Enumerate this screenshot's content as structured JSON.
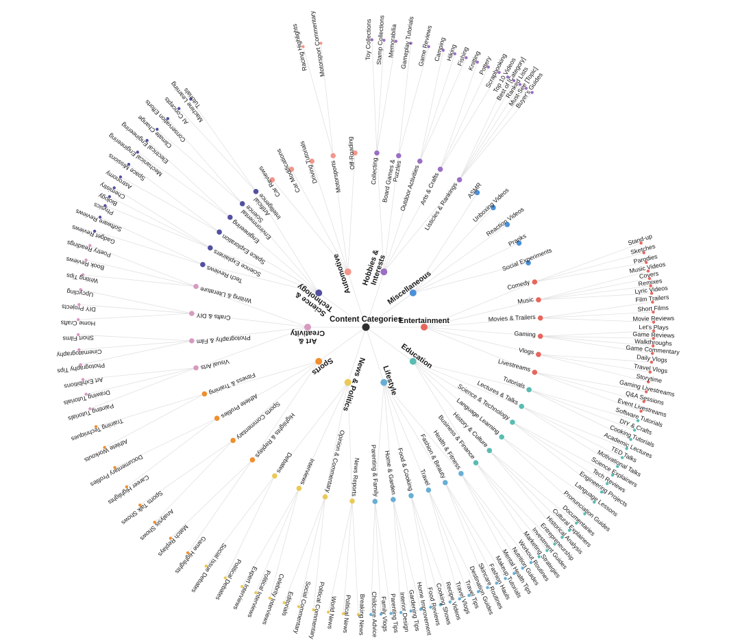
{
  "title": "Content Categories",
  "colors": {
    "root": "#2e2e2e",
    "link": "#e1e1e1",
    "text": "#151515"
  },
  "tree": {
    "label": "Content Categories",
    "children": [
      {
        "label": "Entertainment",
        "color": "#e8655c",
        "children": [
          {
            "label": "Comedy",
            "children": [
              {
                "label": "Stand-up"
              },
              {
                "label": "Sketches"
              },
              {
                "label": "Parodies"
              }
            ]
          },
          {
            "label": "Music",
            "children": [
              {
                "label": "Music Videos"
              },
              {
                "label": "Covers"
              },
              {
                "label": "Remixes"
              },
              {
                "label": "Lyric Videos"
              }
            ]
          },
          {
            "label": "Movies & Trailers",
            "children": [
              {
                "label": "Film Trailers"
              },
              {
                "label": "Short Films"
              },
              {
                "label": "Movie Reviews"
              }
            ]
          },
          {
            "label": "Gaming",
            "children": [
              {
                "label": "Let's Plays"
              },
              {
                "label": "Game Reviews"
              },
              {
                "label": "Walkthroughs"
              },
              {
                "label": "Game Commentary"
              }
            ]
          },
          {
            "label": "Vlogs",
            "children": [
              {
                "label": "Daily Vlogs"
              },
              {
                "label": "Travel Vlogs"
              },
              {
                "label": "Storytime"
              }
            ]
          },
          {
            "label": "Livestreams",
            "children": [
              {
                "label": "Gaming Livestreams"
              },
              {
                "label": "Q&A Sessions"
              },
              {
                "label": "Event Livestreams"
              }
            ]
          }
        ]
      },
      {
        "label": "Education",
        "color": "#59bcb3",
        "children": [
          {
            "label": "Tutorials",
            "children": [
              {
                "label": "Software Tutorials"
              },
              {
                "label": "DIY & Crafts"
              },
              {
                "label": "Cooking Tutorials"
              }
            ]
          },
          {
            "label": "Lectures & Talks",
            "children": [
              {
                "label": "Academic Lectures"
              },
              {
                "label": "TED Talks"
              },
              {
                "label": "Motivational Talks"
              }
            ]
          },
          {
            "label": "Science & Technology",
            "children": [
              {
                "label": "Science Explainers"
              },
              {
                "label": "Tech Reviews"
              },
              {
                "label": "Engineering Projects"
              }
            ]
          },
          {
            "label": "Language Learning",
            "children": [
              {
                "label": "Language Lessons"
              },
              {
                "label": "Pronunciation Guides"
              }
            ]
          },
          {
            "label": "History & Culture",
            "children": [
              {
                "label": "Documentaries"
              },
              {
                "label": "Cultural Explainers"
              },
              {
                "label": "Historical Analysis"
              }
            ]
          },
          {
            "label": "Business & Finance",
            "children": [
              {
                "label": "Entrepreneurship"
              },
              {
                "label": "Investment Guides"
              },
              {
                "label": "Marketing Strategies"
              }
            ]
          }
        ]
      },
      {
        "label": "Lifestyle",
        "color": "#68aed4",
        "children": [
          {
            "label": "Health & Fitness",
            "children": [
              {
                "label": "Workout Routines"
              },
              {
                "label": "Nutrition Guides"
              },
              {
                "label": "Mental Health Tips"
              }
            ]
          },
          {
            "label": "Fashion & Beauty",
            "children": [
              {
                "label": "Makeup Tutorials"
              },
              {
                "label": "Fashion Hauls"
              },
              {
                "label": "Skincare Routines"
              }
            ]
          },
          {
            "label": "Travel",
            "children": [
              {
                "label": "Destination Guides"
              },
              {
                "label": "Travel Tips"
              },
              {
                "label": "Travel Vlogs"
              }
            ]
          },
          {
            "label": "Food & Cooking",
            "children": [
              {
                "label": "Recipe Videos"
              },
              {
                "label": "Cooking Shows"
              },
              {
                "label": "Food Reviews"
              }
            ]
          },
          {
            "label": "Home & Garden",
            "children": [
              {
                "label": "Home Improvement"
              },
              {
                "label": "Gardening Tips"
              },
              {
                "label": "Interior Design"
              }
            ]
          },
          {
            "label": "Parenting & Family",
            "children": [
              {
                "label": "Parenting Tips"
              },
              {
                "label": "Family Vlogs"
              },
              {
                "label": "Childcare Advice"
              }
            ]
          }
        ]
      },
      {
        "label": "News & Politics",
        "color": "#eac957",
        "children": [
          {
            "label": "News Reports",
            "children": [
              {
                "label": "Breaking News"
              },
              {
                "label": "Political News"
              },
              {
                "label": "World News"
              }
            ]
          },
          {
            "label": "Opinion & Commentary",
            "children": [
              {
                "label": "Political Commentary"
              },
              {
                "label": "Social Commentary"
              },
              {
                "label": "Editorials"
              }
            ]
          },
          {
            "label": "Interviews",
            "children": [
              {
                "label": "Celebrity Interviews"
              },
              {
                "label": "Political Interviews"
              },
              {
                "label": "Expert Interviews"
              }
            ]
          },
          {
            "label": "Debates",
            "children": [
              {
                "label": "Political Debates"
              },
              {
                "label": "Social Issue Debates"
              }
            ]
          }
        ]
      },
      {
        "label": "Sports",
        "color": "#ef8f2e",
        "children": [
          {
            "label": "Highlights & Replays",
            "children": [
              {
                "label": "Game Highlights"
              },
              {
                "label": "Match Replays"
              }
            ]
          },
          {
            "label": "Sports Commentary",
            "children": [
              {
                "label": "Analysis Shows"
              },
              {
                "label": "Sports Talk Shows"
              }
            ]
          },
          {
            "label": "Athlete Profiles",
            "children": [
              {
                "label": "Career Highlights"
              },
              {
                "label": "Documentary Profiles"
              }
            ]
          },
          {
            "label": "Fitness & Training",
            "children": [
              {
                "label": "Athlete Workouts"
              },
              {
                "label": "Training Techniques"
              }
            ]
          }
        ]
      },
      {
        "label": "Art & Creativity",
        "label1": "Art &",
        "label2": "Creativity",
        "color": "#d79ac1",
        "children": [
          {
            "label": "Visual Arts",
            "children": [
              {
                "label": "Painting Tutorials"
              },
              {
                "label": "Drawing Tutorials"
              },
              {
                "label": "Art Exhibitions"
              }
            ]
          },
          {
            "label": "Photography & Film",
            "children": [
              {
                "label": "Photography Tips"
              },
              {
                "label": "Cinematography"
              },
              {
                "label": "Short Films"
              }
            ]
          },
          {
            "label": "Crafts & DIY",
            "children": [
              {
                "label": "Home Crafts"
              },
              {
                "label": "DIY Projects"
              },
              {
                "label": "Upcycling"
              }
            ]
          },
          {
            "label": "Writing & Literature",
            "children": [
              {
                "label": "Writing Tips"
              },
              {
                "label": "Book Reviews"
              },
              {
                "label": "Poetry Readings"
              }
            ]
          }
        ]
      },
      {
        "label": "Science & Technology",
        "label1": "Science &",
        "label2": "Technology",
        "color": "#52509f",
        "children": [
          {
            "label": "Tech Reviews",
            "children": [
              {
                "label": "Gadget Reviews"
              },
              {
                "label": "Software Reviews"
              }
            ]
          },
          {
            "label": "Science Explainers",
            "children": [
              {
                "label": "Physics"
              },
              {
                "label": "Biology"
              },
              {
                "label": "Chemistry"
              }
            ]
          },
          {
            "label": "Space Exploration",
            "children": [
              {
                "label": "Astronomy"
              },
              {
                "label": "Space Missions"
              }
            ]
          },
          {
            "label": "Engineering",
            "children": [
              {
                "label": "Mechanical Engineering"
              },
              {
                "label": "Electrical Engineering"
              }
            ]
          },
          {
            "label": "Environmental Science",
            "label1": "Environmental",
            "label2": "Science",
            "children": [
              {
                "label": "Climate Change"
              },
              {
                "label": "Conservation Efforts"
              }
            ]
          },
          {
            "label": "Artificial Intelligence",
            "label1": "Artificial",
            "label2": "Intelligence",
            "children": [
              {
                "label": "AI Concepts"
              },
              {
                "label": "Machine Learning Tutorials",
                "label1": "Machine Learning",
                "label2": "Tutorials"
              }
            ]
          }
        ]
      },
      {
        "label": "Automotive",
        "color": "#f2968c",
        "children": [
          {
            "label": "Car Reviews"
          },
          {
            "label": "Car Modifications"
          },
          {
            "label": "Driving Tutorials"
          },
          {
            "label": "Motorsports",
            "children": [
              {
                "label": "Racing Highlights"
              },
              {
                "label": "Motorsport Commentary"
              }
            ]
          },
          {
            "label": "Off-Roading"
          }
        ]
      },
      {
        "label": "Hobbies & Interests",
        "label1": "Hobbies &",
        "label2": "Interests",
        "color": "#9a6fc4",
        "children": [
          {
            "label": "Collecting",
            "children": [
              {
                "label": "Toy Collections"
              },
              {
                "label": "Stamp Collections"
              },
              {
                "label": "Memorabilia"
              }
            ]
          },
          {
            "label": "Board Games & Puzzles",
            "label1": "Board Games &",
            "label2": "Puzzles",
            "children": [
              {
                "label": "Gameplay Tutorials"
              },
              {
                "label": "Game Reviews"
              }
            ]
          },
          {
            "label": "Outdoor Activities",
            "children": [
              {
                "label": "Camping"
              },
              {
                "label": "Hiking"
              },
              {
                "label": "Fishing"
              }
            ]
          },
          {
            "label": "Arts & Crafts",
            "children": [
              {
                "label": "Knitting"
              },
              {
                "label": "Pottery"
              },
              {
                "label": "Scrapbooking"
              }
            ]
          },
          {
            "label": "Listicles & Rankings",
            "children": [
              {
                "label": "Top 10 Videos"
              },
              {
                "label": "Best of [Category]"
              },
              {
                "label": "Ranked Lists"
              },
              {
                "label": "Must-See [Topic]"
              },
              {
                "label": "Buyer's Guides"
              }
            ]
          }
        ]
      },
      {
        "label": "Miscellaneous",
        "color": "#4b90d8",
        "children": [
          {
            "label": "ASMR"
          },
          {
            "label": "Unboxing Videos"
          },
          {
            "label": "Reaction Videos"
          },
          {
            "label": "Pranks"
          },
          {
            "label": "Social Experiments"
          }
        ]
      }
    ]
  }
}
